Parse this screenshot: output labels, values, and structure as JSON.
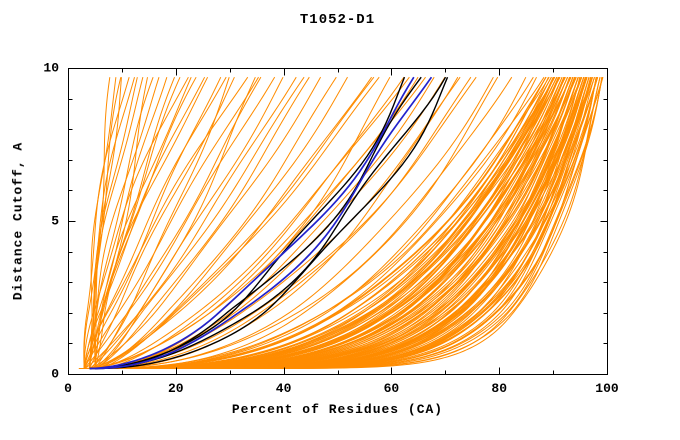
{
  "chart_data": {
    "type": "line",
    "title": "T1052-D1",
    "xlabel": "Percent of Residues (CA)",
    "ylabel": "Distance Cutoff, A",
    "xlim": [
      0,
      100
    ],
    "ylim": [
      0,
      10
    ],
    "x_major_ticks": [
      0,
      20,
      40,
      60,
      80,
      100
    ],
    "x_minor_ticks": [
      10,
      30,
      50,
      70,
      90
    ],
    "y_major_ticks": [
      0,
      5,
      10
    ],
    "y_minor_ticks": [
      1,
      2,
      3,
      4,
      6,
      7,
      8,
      9
    ],
    "grid": "off",
    "legend": "none",
    "axis_color": "#000000",
    "background": "#ffffff",
    "curve_y_start": 0.18,
    "curve_y_top": 9.7,
    "curve_format": "[x_percent_at_cutoff_0, x_percent_at_cutoff_10, shape_exponent]; x(y)=x0+(x1-x0)*(y/ymax)^p",
    "series_groups": [
      {
        "name": "orange-model-ensemble",
        "color": "#FF8C00",
        "line_width": 1,
        "wobble": 0.5,
        "curves": [
          [
            4,
            96,
            0.18
          ],
          [
            5,
            92,
            0.25
          ],
          [
            3,
            98,
            0.15
          ],
          [
            6,
            90,
            0.3
          ],
          [
            4,
            94,
            0.22
          ],
          [
            5,
            97,
            0.17
          ],
          [
            3,
            91,
            0.28
          ],
          [
            6,
            95,
            0.2
          ],
          [
            4,
            99,
            0.14
          ],
          [
            5,
            89,
            0.33
          ],
          [
            3,
            93,
            0.24
          ],
          [
            6,
            96,
            0.19
          ],
          [
            4,
            90,
            0.31
          ],
          [
            5,
            98,
            0.16
          ],
          [
            3,
            95,
            0.21
          ],
          [
            6,
            92,
            0.27
          ],
          [
            4,
            97,
            0.18
          ],
          [
            5,
            94,
            0.23
          ],
          [
            3,
            99,
            0.13
          ],
          [
            6,
            89,
            0.35
          ],
          [
            4,
            91,
            0.29
          ],
          [
            5,
            96,
            0.19
          ],
          [
            3,
            94,
            0.22
          ],
          [
            6,
            98,
            0.15
          ],
          [
            4,
            92,
            0.26
          ],
          [
            5,
            90,
            0.32
          ],
          [
            3,
            97,
            0.17
          ],
          [
            6,
            93,
            0.24
          ],
          [
            4,
            95,
            0.2
          ],
          [
            5,
            99,
            0.14
          ],
          [
            3,
            90,
            0.3
          ],
          [
            6,
            94,
            0.22
          ],
          [
            4,
            98,
            0.16
          ],
          [
            5,
            91,
            0.28
          ],
          [
            3,
            96,
            0.19
          ],
          [
            6,
            97,
            0.17
          ],
          [
            4,
            93,
            0.25
          ],
          [
            5,
            95,
            0.21
          ],
          [
            3,
            92,
            0.27
          ],
          [
            6,
            99,
            0.13
          ],
          [
            4,
            89,
            0.34
          ],
          [
            5,
            93,
            0.24
          ],
          [
            3,
            98,
            0.15
          ],
          [
            6,
            91,
            0.29
          ],
          [
            4,
            96,
            0.18
          ],
          [
            5,
            92,
            0.26
          ],
          [
            3,
            95,
            0.2
          ],
          [
            6,
            90,
            0.31
          ],
          [
            4,
            94,
            0.23
          ],
          [
            5,
            97,
            0.16
          ],
          [
            3,
            89,
            0.36
          ],
          [
            6,
            96,
            0.18
          ],
          [
            4,
            92,
            0.27
          ],
          [
            5,
            98,
            0.15
          ],
          [
            3,
            93,
            0.25
          ],
          [
            6,
            95,
            0.19
          ],
          [
            4,
            90,
            0.32
          ],
          [
            5,
            94,
            0.22
          ],
          [
            3,
            97,
            0.16
          ],
          [
            6,
            92,
            0.28
          ],
          [
            4,
            99,
            0.12
          ],
          [
            5,
            89,
            0.37
          ],
          [
            3,
            94,
            0.23
          ],
          [
            6,
            98,
            0.14
          ],
          [
            4,
            91,
            0.3
          ],
          [
            5,
            96,
            0.18
          ],
          [
            3,
            92,
            0.28
          ],
          [
            6,
            94,
            0.21
          ],
          [
            4,
            97,
            0.15
          ],
          [
            5,
            90,
            0.33
          ],
          [
            3,
            96,
            0.18
          ],
          [
            6,
            93,
            0.25
          ],
          [
            4,
            95,
            0.19
          ],
          [
            5,
            99,
            0.12
          ],
          [
            3,
            91,
            0.31
          ],
          [
            6,
            97,
            0.16
          ],
          [
            4,
            93,
            0.26
          ],
          [
            5,
            95,
            0.2
          ],
          [
            3,
            98,
            0.14
          ],
          [
            6,
            89,
            0.38
          ],
          [
            4,
            94,
            0.24
          ],
          [
            5,
            92,
            0.29
          ],
          [
            3,
            90,
            0.34
          ],
          [
            6,
            96,
            0.17
          ],
          [
            4,
            98,
            0.13
          ],
          [
            5,
            93,
            0.27
          ],
          [
            3,
            95,
            0.19
          ],
          [
            6,
            91,
            0.32
          ],
          [
            4,
            96,
            0.17
          ],
          [
            5,
            97,
            0.15
          ],
          [
            2,
            94,
            0.25
          ],
          [
            7,
            98,
            0.2
          ],
          [
            4,
            88,
            0.4
          ],
          [
            5,
            96,
            0.22
          ],
          [
            3,
            99,
            0.11
          ],
          [
            6,
            90,
            0.35
          ],
          [
            4,
            97,
            0.19
          ],
          [
            5,
            91,
            0.3
          ],
          [
            3,
            93,
            0.26
          ],
          [
            6,
            95,
            0.18
          ],
          [
            4,
            60,
            0.5
          ],
          [
            5,
            72,
            0.45
          ],
          [
            3,
            65,
            0.6
          ],
          [
            6,
            80,
            0.4
          ],
          [
            4,
            56,
            0.7
          ],
          [
            5,
            85,
            0.38
          ],
          [
            3,
            76,
            0.5
          ],
          [
            6,
            62,
            0.65
          ],
          [
            4,
            70,
            0.55
          ],
          [
            5,
            58,
            0.75
          ],
          [
            3,
            82,
            0.42
          ],
          [
            6,
            68,
            0.58
          ],
          [
            4,
            75,
            0.48
          ],
          [
            5,
            63,
            0.68
          ],
          [
            3,
            87,
            0.36
          ],
          [
            6,
            57,
            0.78
          ],
          [
            4,
            66,
            0.62
          ],
          [
            5,
            79,
            0.44
          ],
          [
            3,
            73,
            0.52
          ],
          [
            6,
            86,
            0.4
          ],
          [
            4,
            10,
            1.2
          ],
          [
            5,
            15,
            0.9
          ],
          [
            3,
            22,
            1.5
          ],
          [
            4,
            30,
            0.8
          ],
          [
            5,
            8,
            1.8
          ],
          [
            3,
            18,
            1.1
          ],
          [
            4,
            26,
            1.4
          ],
          [
            5,
            35,
            0.75
          ],
          [
            3,
            12,
            1.6
          ],
          [
            4,
            40,
            0.85
          ],
          [
            5,
            20,
            1.3
          ],
          [
            3,
            28,
            1.0
          ],
          [
            4,
            14,
            1.7
          ],
          [
            5,
            45,
            0.8
          ],
          [
            3,
            33,
            1.2
          ],
          [
            4,
            9,
            2.0
          ],
          [
            5,
            24,
            1.45
          ],
          [
            3,
            38,
            0.9
          ],
          [
            4,
            17,
            1.55
          ],
          [
            5,
            50,
            0.72
          ],
          [
            3,
            11,
            1.9
          ],
          [
            4,
            31,
            1.05
          ],
          [
            5,
            21,
            1.35
          ],
          [
            3,
            42,
            0.82
          ],
          [
            4,
            13,
            1.75
          ],
          [
            5,
            36,
            0.95
          ],
          [
            3,
            25,
            1.25
          ],
          [
            4,
            47,
            0.78
          ],
          [
            5,
            16,
            1.6
          ],
          [
            3,
            29,
            1.15
          ],
          [
            4,
            52,
            0.7
          ],
          [
            5,
            10,
            2.1
          ],
          [
            3,
            35,
            1.0
          ],
          [
            4,
            23,
            1.4
          ],
          [
            5,
            44,
            0.88
          ]
        ]
      },
      {
        "name": "black-highlighted-models",
        "color": "#000000",
        "line_width": 1.4,
        "wobble": 1.5,
        "curves": [
          [
            4,
            63,
            0.5
          ],
          [
            5,
            66,
            0.52
          ],
          [
            4,
            69,
            0.48
          ],
          [
            5,
            71,
            0.46
          ]
        ]
      },
      {
        "name": "blue-reference-model",
        "color": "#2222CC",
        "line_width": 1.7,
        "wobble": 1.2,
        "curves": [
          [
            4,
            65,
            0.55
          ],
          [
            5,
            67,
            0.5
          ]
        ]
      }
    ]
  }
}
